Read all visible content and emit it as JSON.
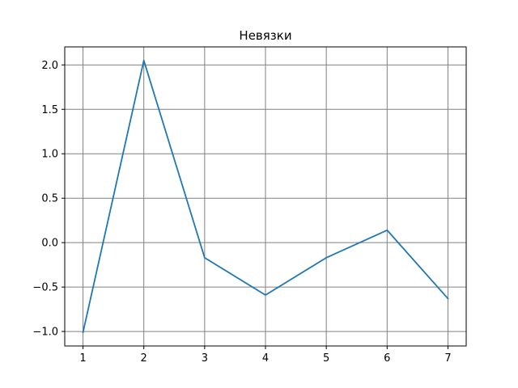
{
  "chart_data": {
    "type": "line",
    "title": "Невязки",
    "xlabel": "",
    "ylabel": "",
    "x": [
      1,
      2,
      3,
      4,
      5,
      6,
      7
    ],
    "series": [
      {
        "values": [
          -1.01,
          2.05,
          -0.17,
          -0.59,
          -0.17,
          0.14,
          -0.63
        ],
        "color": "#1f77b4"
      }
    ],
    "xlim": [
      0.7,
      7.3
    ],
    "ylim": [
      -1.163,
      2.203
    ],
    "xticks": [
      1,
      2,
      3,
      4,
      5,
      6,
      7
    ],
    "xtick_labels": [
      "1",
      "2",
      "3",
      "4",
      "5",
      "6",
      "7"
    ],
    "yticks": [
      -1.0,
      -0.5,
      0.0,
      0.5,
      1.0,
      1.5,
      2.0
    ],
    "ytick_labels": [
      "−1.0",
      "−0.5",
      "0.0",
      "0.5",
      "1.0",
      "1.5",
      "2.0"
    ],
    "grid": true,
    "grid_color": "#808080",
    "legend": false
  }
}
